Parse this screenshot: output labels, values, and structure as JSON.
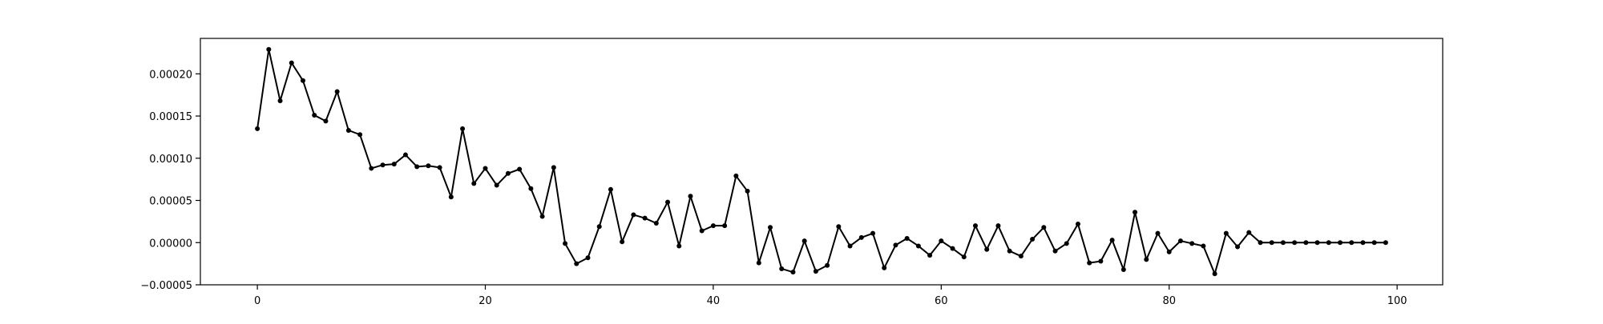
{
  "chart_data": {
    "type": "line",
    "title": "",
    "xlabel": "",
    "ylabel": "",
    "xlim": [
      -5,
      104
    ],
    "ylim": [
      -5e-05,
      0.000242
    ],
    "x_ticks": [
      0,
      20,
      40,
      60,
      80,
      100
    ],
    "x_tick_labels": [
      "0",
      "20",
      "40",
      "60",
      "80",
      "100"
    ],
    "y_ticks": [
      -5e-05,
      0.0,
      5e-05,
      0.0001,
      0.00015,
      0.0002
    ],
    "y_tick_labels": [
      "−0.00005",
      "0.00000",
      "0.00005",
      "0.00010",
      "0.00015",
      "0.00020"
    ],
    "grid": false,
    "series": [
      {
        "color": "#000000",
        "marker": "dot",
        "x": [
          0,
          1,
          2,
          3,
          4,
          5,
          6,
          7,
          8,
          9,
          10,
          11,
          12,
          13,
          14,
          15,
          16,
          17,
          18,
          19,
          20,
          21,
          22,
          23,
          24,
          25,
          26,
          27,
          28,
          29,
          30,
          31,
          32,
          33,
          34,
          35,
          36,
          37,
          38,
          39,
          40,
          41,
          42,
          43,
          44,
          45,
          46,
          47,
          48,
          49,
          50,
          51,
          52,
          53,
          54,
          55,
          56,
          57,
          58,
          59,
          60,
          61,
          62,
          63,
          64,
          65,
          66,
          67,
          68,
          69,
          70,
          71,
          72,
          73,
          74,
          75,
          76,
          77,
          78,
          79,
          80,
          81,
          82,
          83,
          84,
          85,
          86,
          87,
          88,
          89,
          90,
          91,
          92,
          93,
          94,
          95,
          96,
          97,
          98,
          99
        ],
        "y": [
          0.000135,
          0.000229,
          0.000168,
          0.000213,
          0.000192,
          0.000151,
          0.000144,
          0.000179,
          0.000133,
          0.000128,
          8.8e-05,
          9.2e-05,
          9.3e-05,
          0.000104,
          9e-05,
          9.1e-05,
          8.9e-05,
          5.4e-05,
          0.000135,
          7e-05,
          8.8e-05,
          6.8e-05,
          8.2e-05,
          8.7e-05,
          6.4e-05,
          3.1e-05,
          8.9e-05,
          -1e-06,
          -2.5e-05,
          -1.8e-05,
          1.9e-05,
          6.3e-05,
          1e-06,
          3.3e-05,
          2.9e-05,
          2.3e-05,
          4.8e-05,
          -4e-06,
          5.5e-05,
          1.4e-05,
          2e-05,
          2e-05,
          7.9e-05,
          6.1e-05,
          -2.4e-05,
          1.8e-05,
          -3.1e-05,
          -3.5e-05,
          2e-06,
          -3.4e-05,
          -2.7e-05,
          1.9e-05,
          -4e-06,
          6e-06,
          1.1e-05,
          -3e-05,
          -3e-06,
          5e-06,
          -4e-06,
          -1.5e-05,
          2e-06,
          -7e-06,
          -1.7e-05,
          2e-05,
          -8e-06,
          2e-05,
          -1e-05,
          -1.6e-05,
          4e-06,
          1.8e-05,
          -1e-05,
          -1e-06,
          2.2e-05,
          -2.4e-05,
          -2.2e-05,
          3e-06,
          -3.2e-05,
          3.6e-05,
          -2e-05,
          1.1e-05,
          -1.1e-05,
          2e-06,
          -1e-06,
          -4e-06,
          -3.7e-05,
          1.1e-05,
          -5e-06,
          1.2e-05,
          0.0,
          0.0,
          0.0,
          0.0,
          0.0,
          0.0,
          0.0,
          0.0,
          0.0,
          0.0,
          0.0,
          0.0
        ]
      }
    ]
  }
}
